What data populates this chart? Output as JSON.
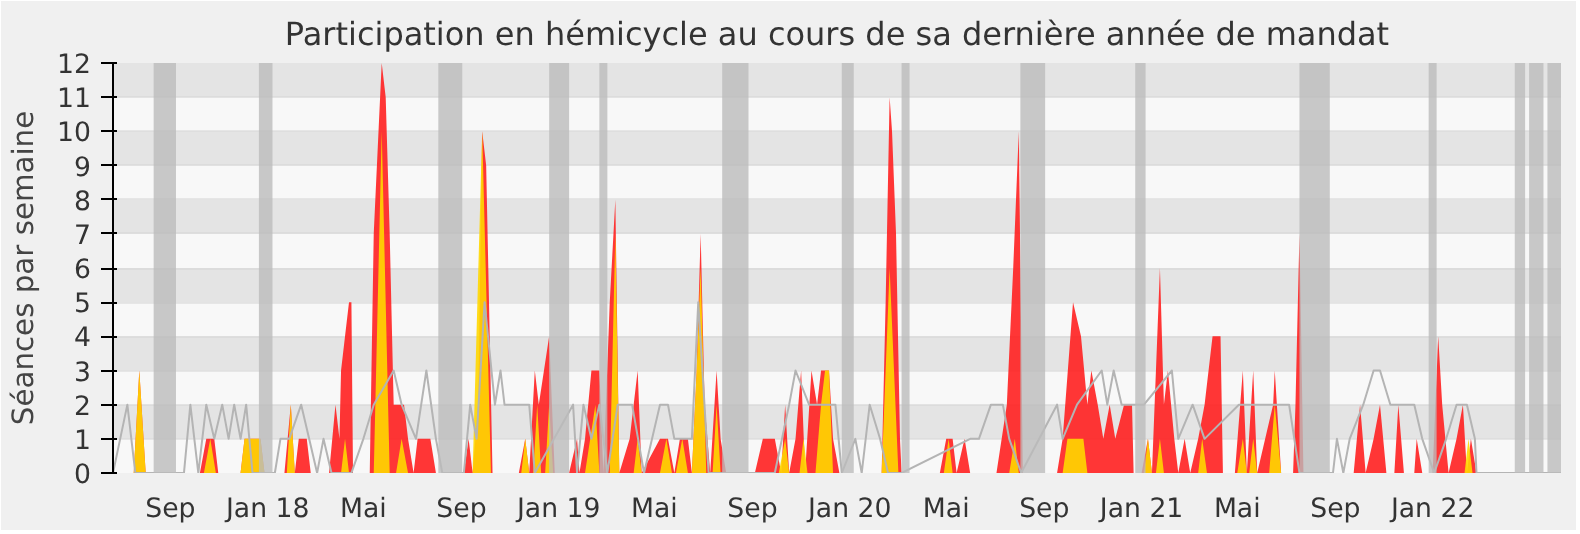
{
  "chart_data": {
    "type": "area",
    "title": "Participation en hémicycle au cours de sa dernière année de mandat",
    "ylabel": "Séances par semaine",
    "xlim": [
      "2017-06-21",
      "2022-06-11"
    ],
    "xticks": [
      {
        "value": "2017-09-01",
        "label": "Sep"
      },
      {
        "value": "2018-01-01",
        "label": "Jan 18"
      },
      {
        "value": "2018-05-01",
        "label": "Mai"
      },
      {
        "value": "2018-09-01",
        "label": "Sep"
      },
      {
        "value": "2019-01-01",
        "label": "Jan 19"
      },
      {
        "value": "2019-05-01",
        "label": "Mai"
      },
      {
        "value": "2019-09-01",
        "label": "Sep"
      },
      {
        "value": "2020-01-01",
        "label": "Jan 20"
      },
      {
        "value": "2020-05-01",
        "label": "Mai"
      },
      {
        "value": "2020-09-01",
        "label": "Sep"
      },
      {
        "value": "2021-01-01",
        "label": "Jan 21"
      },
      {
        "value": "2021-05-01",
        "label": "Mai"
      },
      {
        "value": "2021-09-01",
        "label": "Sep"
      },
      {
        "value": "2022-01-01",
        "label": "Jan 22"
      }
    ],
    "ylim": [
      0,
      12
    ],
    "yticks": [
      0,
      1,
      2,
      3,
      4,
      5,
      6,
      7,
      8,
      9,
      10,
      11,
      12
    ],
    "grid": "y",
    "bands": [
      {
        "axis": "x",
        "from": "2017-08-11",
        "to": "2017-09-08",
        "color": "#bbbbbb"
      },
      {
        "axis": "x",
        "from": "2017-12-21",
        "to": "2018-01-07",
        "color": "#bbbbbb"
      },
      {
        "axis": "x",
        "from": "2018-08-03",
        "to": "2018-09-02",
        "color": "#bbbbbb"
      },
      {
        "axis": "x",
        "from": "2018-12-20",
        "to": "2019-01-14",
        "color": "#bbbbbb"
      },
      {
        "axis": "x",
        "from": "2019-02-21",
        "to": "2019-03-03",
        "color": "#bbbbbb"
      },
      {
        "axis": "x",
        "from": "2019-07-25",
        "to": "2019-08-27",
        "color": "#bbbbbb"
      },
      {
        "axis": "x",
        "from": "2019-12-22",
        "to": "2020-01-06",
        "color": "#bbbbbb"
      },
      {
        "axis": "x",
        "from": "2020-03-06",
        "to": "2020-03-16",
        "color": "#bbbbbb"
      },
      {
        "axis": "x",
        "from": "2020-08-02",
        "to": "2020-09-02",
        "color": "#bbbbbb"
      },
      {
        "axis": "x",
        "from": "2020-12-24",
        "to": "2021-01-06",
        "color": "#bbbbbb"
      },
      {
        "axis": "x",
        "from": "2021-07-18",
        "to": "2021-08-25",
        "color": "#bbbbbb"
      },
      {
        "axis": "x",
        "from": "2021-12-27",
        "to": "2022-01-06",
        "color": "#bbbbbb"
      },
      {
        "axis": "x",
        "from": "2022-04-14",
        "to": "2022-04-27",
        "color": "#bbbbbb"
      },
      {
        "axis": "x",
        "from": "2022-05-02",
        "to": "2022-05-20",
        "color": "#bbbbbb"
      },
      {
        "axis": "x",
        "from": "2022-05-25",
        "to": "2022-06-11",
        "color": "#bbbbbb"
      }
    ],
    "series": [
      {
        "type": "line",
        "color": "#b4b4b4",
        "x": [
          "2017-06-21",
          "2017-07-09",
          "2017-07-19",
          "2017-09-18",
          "2017-09-26",
          "2017-10-06",
          "2017-10-16",
          "2017-10-26",
          "2017-11-05",
          "2017-11-13",
          "2017-11-20",
          "2017-11-28",
          "2017-12-05",
          "2017-12-13",
          "2018-01-10",
          "2018-01-17",
          "2018-01-28",
          "2018-02-12",
          "2018-02-22",
          "2018-03-04",
          "2018-03-12",
          "2018-03-22",
          "2018-04-16",
          "2018-05-01",
          "2018-05-14",
          "2018-06-08",
          "2018-06-18",
          "2018-07-06",
          "2018-07-19",
          "2018-07-31",
          "2018-08-08",
          "2018-09-04",
          "2018-09-12",
          "2018-09-20",
          "2018-09-30",
          "2018-10-13",
          "2018-10-20",
          "2018-10-25",
          "2018-11-25",
          "2018-12-02",
          "2019-01-19",
          "2019-01-24",
          "2019-02-01",
          "2019-02-11",
          "2019-02-21",
          "2019-03-03",
          "2019-03-16",
          "2019-04-03",
          "2019-04-18",
          "2019-05-08",
          "2019-05-18",
          "2019-05-26",
          "2019-06-17",
          "2019-06-25",
          "2019-07-08",
          "2019-09-29",
          "2019-10-17",
          "2019-10-25",
          "2019-11-11",
          "2019-12-14",
          "2019-12-22",
          "2020-01-08",
          "2020-01-16",
          "2020-01-26",
          "2020-02-08",
          "2020-02-18",
          "2020-03-06",
          "2020-05-31",
          "2020-06-11",
          "2020-06-26",
          "2020-07-11",
          "2020-07-19",
          "2020-08-03",
          "2020-09-17",
          "2020-09-24",
          "2020-10-12",
          "2020-11-12",
          "2020-11-19",
          "2020-11-27",
          "2020-12-07",
          "2020-12-22",
          "2021-01-04",
          "2021-02-08",
          "2021-02-16",
          "2021-03-06",
          "2021-03-21",
          "2021-05-03",
          "2021-05-21",
          "2021-06-23",
          "2021-07-05",
          "2021-07-18",
          "2021-08-29",
          "2021-09-03",
          "2021-09-11",
          "2021-09-19",
          "2021-10-06",
          "2021-10-19",
          "2021-10-27",
          "2021-11-09",
          "2021-12-09",
          "2021-12-19",
          "2022-01-03",
          "2022-01-18",
          "2022-01-31",
          "2022-02-13",
          "2022-02-23",
          "2022-02-25",
          "2022-06-11"
        ],
        "values": [
          0,
          2,
          0,
          0,
          2,
          0,
          2,
          1,
          2,
          1,
          2,
          1,
          2,
          0,
          0,
          1,
          1,
          2,
          1,
          0,
          1,
          0,
          0,
          1,
          2,
          3,
          2,
          1,
          3,
          1,
          0,
          0,
          2,
          1,
          5,
          2,
          3,
          2,
          2,
          0,
          2,
          0,
          2,
          1,
          2,
          0,
          2,
          2,
          0,
          2,
          2,
          1,
          1,
          5,
          0,
          0,
          2,
          3,
          2,
          2,
          0,
          1,
          0,
          2,
          1,
          0,
          0,
          1,
          1,
          2,
          2,
          1,
          0,
          2,
          1,
          2,
          3,
          2,
          3,
          2,
          2,
          2,
          3,
          1,
          2,
          1,
          2,
          2,
          2,
          2,
          0,
          0,
          1,
          0,
          1,
          2,
          3,
          3,
          2,
          2,
          1,
          0,
          1,
          2,
          2,
          1,
          0,
          0
        ]
      },
      {
        "color": "#ff2020",
        "x": [
          "2017-06-21",
          "2017-07-04",
          "2017-07-17",
          "2017-07-24",
          "2017-08-01",
          "2017-10-08",
          "2017-10-16",
          "2017-10-26",
          "2017-10-31",
          "2017-11-28",
          "2017-12-03",
          "2017-12-23",
          "2017-12-28",
          "2018-01-22",
          "2018-01-30",
          "2018-02-04",
          "2018-02-09",
          "2018-02-19",
          "2018-02-24",
          "2018-03-19",
          "2018-03-27",
          "2018-04-01",
          "2018-04-03",
          "2018-04-08",
          "2018-04-13",
          "2018-04-16",
          "2018-04-18",
          "2018-05-09",
          "2018-05-14",
          "2018-05-24",
          "2018-05-29",
          "2018-06-03",
          "2018-06-08",
          "2018-06-21",
          "2018-06-26",
          "2018-07-03",
          "2018-07-08",
          "2018-07-24",
          "2018-07-31",
          "2018-09-04",
          "2018-09-10",
          "2018-09-15",
          "2018-09-22",
          "2018-09-27",
          "2018-10-02",
          "2018-10-10",
          "2018-11-12",
          "2018-11-20",
          "2018-11-25",
          "2018-12-02",
          "2018-12-07",
          "2018-12-20",
          "2018-12-27",
          "2019-01-14",
          "2019-01-24",
          "2019-01-27",
          "2019-02-03",
          "2019-02-11",
          "2019-02-21",
          "2019-02-26",
          "2019-03-06",
          "2019-03-13",
          "2019-03-18",
          "2019-03-31",
          "2019-04-10",
          "2019-04-15",
          "2019-05-08",
          "2019-05-18",
          "2019-05-26",
          "2019-06-02",
          "2019-06-12",
          "2019-06-17",
          "2019-06-23",
          "2019-06-28",
          "2019-07-03",
          "2019-07-10",
          "2019-07-18",
          "2019-07-23",
          "2019-07-30",
          "2019-09-04",
          "2019-09-14",
          "2019-09-29",
          "2019-10-07",
          "2019-10-12",
          "2019-10-17",
          "2019-10-25",
          "2019-11-01",
          "2019-11-06",
          "2019-11-14",
          "2019-11-21",
          "2019-11-26",
          "2019-12-06",
          "2019-12-11",
          "2019-12-19",
          "2020-02-10",
          "2020-02-15",
          "2020-02-20",
          "2020-02-23",
          "2020-02-28",
          "2020-03-04",
          "2020-03-06",
          "2020-04-23",
          "2020-05-01",
          "2020-05-09",
          "2020-05-14",
          "2020-05-24",
          "2020-05-31",
          "2020-07-03",
          "2020-07-16",
          "2020-07-24",
          "2020-07-31",
          "2020-08-05",
          "2020-09-17",
          "2020-09-24",
          "2020-10-07",
          "2020-10-17",
          "2020-10-25",
          "2020-10-30",
          "2020-11-07",
          "2020-11-14",
          "2020-11-22",
          "2020-11-29",
          "2020-12-10",
          "2020-12-20",
          "2020-12-22",
          "2021-01-01",
          "2021-01-09",
          "2021-01-14",
          "2021-01-19",
          "2021-01-24",
          "2021-01-29",
          "2021-02-03",
          "2021-02-11",
          "2021-02-16",
          "2021-02-24",
          "2021-03-03",
          "2021-03-13",
          "2021-03-21",
          "2021-03-31",
          "2021-04-10",
          "2021-04-13",
          "2021-04-28",
          "2021-05-08",
          "2021-05-13",
          "2021-05-21",
          "2021-05-26",
          "2021-06-05",
          "2021-06-15",
          "2021-06-17",
          "2021-06-25",
          "2021-07-10",
          "2021-07-13",
          "2021-07-18",
          "2021-07-23",
          "2021-09-24",
          "2021-10-02",
          "2021-10-09",
          "2021-10-19",
          "2021-10-27",
          "2021-11-04",
          "2021-11-14",
          "2021-11-19",
          "2021-11-26",
          "2021-12-09",
          "2021-12-12",
          "2021-12-19",
          "2022-01-01",
          "2022-01-08",
          "2022-01-13",
          "2022-01-21",
          "2022-01-31",
          "2022-02-08",
          "2022-02-13",
          "2022-02-18",
          "2022-02-25",
          "2022-06-11"
        ],
        "values": [
          0,
          0,
          0,
          3,
          0,
          0,
          1,
          1,
          0,
          0,
          1,
          1,
          0,
          0,
          2,
          0,
          1,
          1,
          0,
          0,
          2,
          1,
          3,
          4,
          5,
          5,
          0,
          0,
          7,
          12,
          11,
          7,
          2,
          2,
          1,
          0,
          1,
          1,
          0,
          0,
          1,
          0,
          2,
          10,
          9,
          0,
          0,
          1,
          0,
          3,
          2,
          4,
          0,
          0,
          1,
          0,
          1,
          3,
          3,
          0,
          5,
          8,
          0,
          1,
          3,
          0,
          1,
          1,
          0,
          1,
          1,
          0,
          3,
          7,
          2,
          0,
          3,
          1,
          0,
          0,
          1,
          1,
          0,
          2,
          0,
          1,
          3,
          0,
          3,
          2,
          3,
          3,
          1,
          0,
          0,
          5,
          11,
          10,
          7,
          1,
          0,
          0,
          1,
          1,
          0,
          1,
          0,
          0,
          2,
          6,
          10,
          0,
          0,
          1,
          5,
          4,
          2,
          3,
          2,
          1,
          2,
          1,
          2,
          2,
          0,
          0,
          1,
          0,
          3,
          6,
          2,
          3,
          1,
          0,
          1,
          0,
          1,
          2,
          4,
          4,
          0,
          0,
          3,
          0,
          3,
          0,
          1,
          2,
          3,
          0,
          0,
          2,
          7,
          0,
          0,
          2,
          0,
          1,
          2,
          0,
          0,
          2,
          0,
          0,
          1,
          0,
          0,
          4,
          2,
          0,
          1,
          2,
          0,
          1,
          0,
          0
        ]
      },
      {
        "color": "#ffd700",
        "x": [
          "2017-07-17",
          "2017-07-24",
          "2017-08-01",
          "2017-10-13",
          "2017-10-21",
          "2017-10-28",
          "2017-11-28",
          "2017-12-03",
          "2017-12-23",
          "2017-12-28",
          "2018-01-25",
          "2018-01-30",
          "2018-02-04",
          "2018-04-03",
          "2018-04-08",
          "2018-04-13",
          "2018-05-14",
          "2018-05-24",
          "2018-06-03",
          "2018-06-11",
          "2018-06-18",
          "2018-06-26",
          "2018-09-15",
          "2018-09-27",
          "2018-10-08",
          "2018-11-15",
          "2018-11-20",
          "2018-11-25",
          "2018-11-30",
          "2018-12-05",
          "2018-12-10",
          "2018-12-15",
          "2018-12-20",
          "2018-12-25",
          "2019-02-03",
          "2019-02-16",
          "2019-02-21",
          "2019-03-06",
          "2019-03-13",
          "2019-03-18",
          "2019-04-05",
          "2019-04-10",
          "2019-04-15",
          "2019-05-08",
          "2019-05-16",
          "2019-05-23",
          "2019-05-28",
          "2019-06-05",
          "2019-06-12",
          "2019-06-17",
          "2019-06-23",
          "2019-06-28",
          "2019-07-05",
          "2019-07-13",
          "2019-07-18",
          "2019-07-23",
          "2019-10-04",
          "2019-10-12",
          "2019-10-17",
          "2019-10-30",
          "2019-11-04",
          "2019-11-09",
          "2019-11-19",
          "2019-11-26",
          "2019-12-01",
          "2019-12-06",
          "2019-12-11",
          "2020-02-10",
          "2020-02-20",
          "2020-03-02",
          "2020-04-28",
          "2020-05-04",
          "2020-05-09",
          "2020-07-19",
          "2020-07-26",
          "2020-07-31",
          "2020-09-24",
          "2020-09-30",
          "2020-10-20",
          "2020-10-25",
          "2021-01-04",
          "2021-01-09",
          "2021-01-14",
          "2021-01-19",
          "2021-01-24",
          "2021-01-29",
          "2021-03-13",
          "2021-03-18",
          "2021-03-24",
          "2021-05-01",
          "2021-05-08",
          "2021-05-13",
          "2021-05-16",
          "2021-05-21",
          "2021-05-26",
          "2021-06-10",
          "2021-06-17",
          "2021-06-25",
          "2022-02-10",
          "2022-02-15",
          "2022-02-20"
        ],
        "values": [
          0,
          3,
          0,
          0,
          1,
          0,
          0,
          1,
          1,
          0,
          0,
          2,
          0,
          0,
          1,
          0,
          0,
          10,
          0,
          0,
          1,
          0,
          0,
          10,
          0,
          0,
          1,
          0,
          0,
          2,
          0,
          0,
          2,
          0,
          0,
          2,
          0,
          0,
          7,
          0,
          0,
          1,
          0,
          0,
          1,
          0,
          0,
          1,
          0,
          0,
          3,
          6,
          0,
          0,
          2,
          0,
          0,
          1,
          0,
          0,
          1,
          0,
          0,
          2,
          3,
          3,
          0,
          0,
          6,
          0,
          0,
          1,
          0,
          0,
          1,
          0,
          0,
          1,
          1,
          0,
          0,
          1,
          0,
          0,
          1,
          0,
          0,
          1,
          0,
          0,
          1,
          0,
          0,
          1,
          0,
          0,
          2,
          0,
          0,
          1,
          0
        ]
      }
    ]
  }
}
